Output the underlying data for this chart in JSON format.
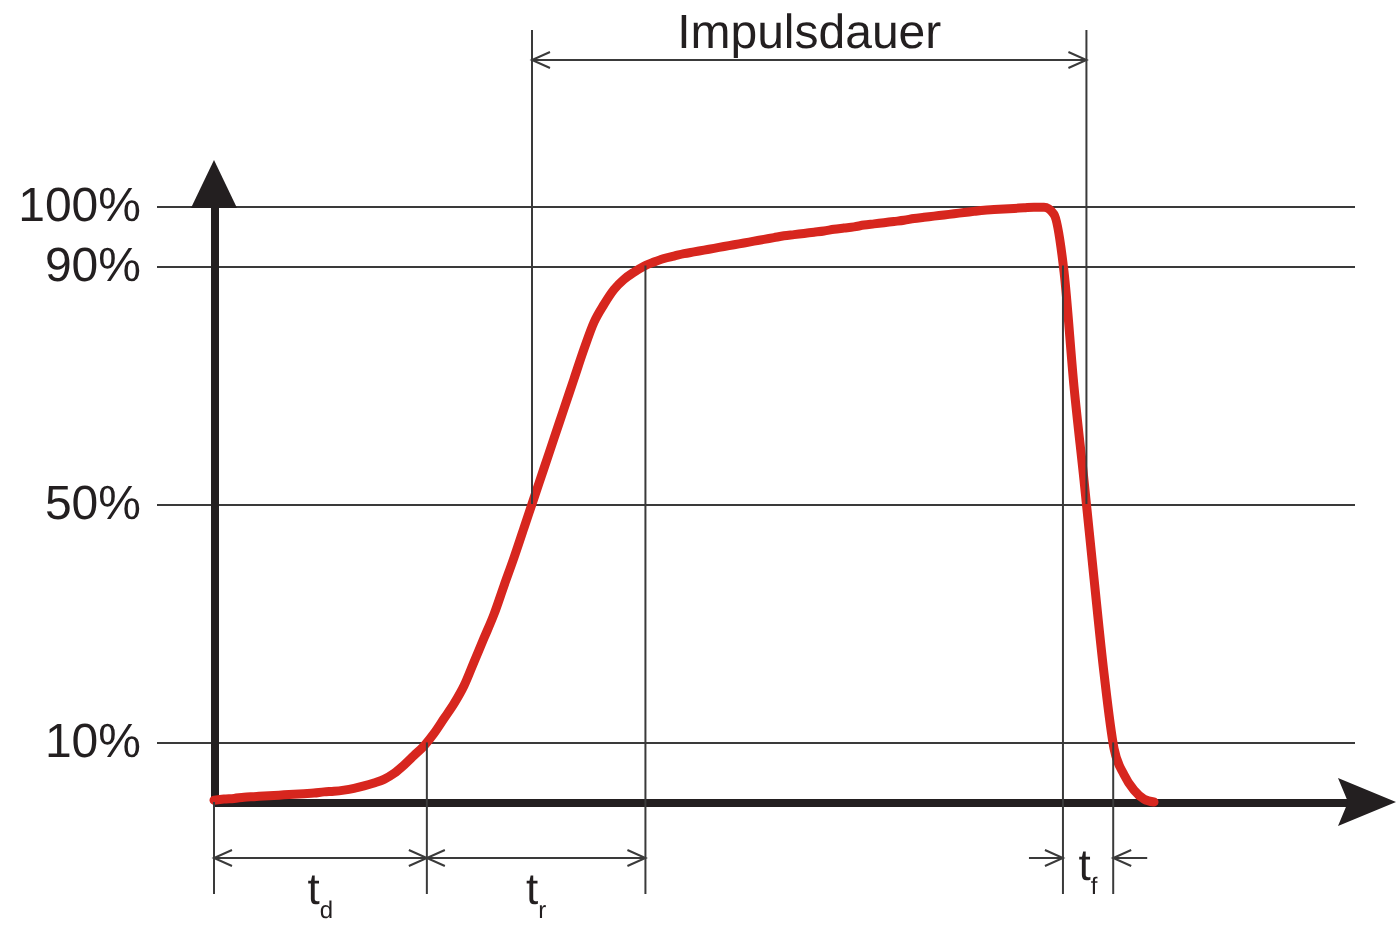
{
  "chart_data": {
    "type": "line",
    "annotations": [
      "Impulsdauer",
      "t$_{d}$",
      "t$_{r}$",
      "t$_{f}$"
    ],
    "categories": [
      null,
      null,
      null,
      null,
      null,
      null,
      null,
      null,
      null,
      null,
      null,
      null,
      null,
      null,
      null,
      null,
      null,
      null,
      null,
      null,
      null,
      null,
      null,
      null,
      null,
      null,
      null,
      null,
      null,
      null,
      null,
      null,
      null,
      null,
      null,
      null,
      null,
      null,
      null,
      null,
      null,
      null,
      null,
      null,
      null,
      null,
      null,
      null,
      null,
      null,
      null,
      null,
      null,
      null,
      null,
      null,
      null,
      null,
      null,
      null,
      null,
      null,
      null,
      null,
      null,
      null,
      null,
      null,
      null,
      null,
      null,
      null,
      null,
      null,
      null,
      null,
      null,
      null,
      null,
      null,
      null,
      null,
      null,
      null,
      null,
      null,
      null,
      null,
      null,
      null,
      null,
      null,
      null,
      null,
      null,
      null,
      null,
      null,
      null,
      null,
      null,
      null,
      null,
      null,
      null,
      null,
      null,
      null,
      null,
      null,
      null,
      null,
      null,
      null,
      null
    ],
    "values": [
      0.3,
      0.5,
      0.6,
      0.8,
      0.9,
      1.0,
      1.1,
      1.2,
      1.3,
      1.4,
      1.5,
      1.7,
      1.8,
      2.0,
      2.3,
      2.7,
      3.2,
      3.8,
      4.8,
      6.2,
      7.8,
      9.4,
      11.5,
      14,
      16.5,
      19.5,
      23.5,
      27.5,
      31.5,
      36.3,
      41,
      46,
      51,
      56,
      61,
      66,
      71,
      76,
      80.5,
      83.5,
      86,
      87.7,
      88.9,
      89.9,
      90.6,
      91.2,
      91.6,
      92.0,
      92.3,
      92.6,
      92.9,
      93.2,
      93.5,
      93.8,
      94.1,
      94.4,
      94.7,
      95.0,
      95.2,
      95.4,
      95.6,
      95.8,
      96.1,
      96.3,
      96.5,
      96.8,
      97.0,
      97.2,
      97.4,
      97.6,
      97.9,
      98.1,
      98.3,
      98.5,
      98.7,
      98.9,
      99.1,
      99.3,
      99.4,
      99.5,
      99.6,
      99.7,
      99.8,
      99.8,
      98.6,
      89,
      69.7,
      54,
      37.5,
      21.6,
      9.0,
      4.6,
      2.0,
      0.5,
      0,
      null,
      null,
      null,
      null,
      null,
      null,
      null,
      null,
      null,
      null,
      null,
      null,
      null,
      null,
      null,
      null,
      null,
      null,
      null,
      null
    ],
    "color": "#d7261e",
    "ylim": [
      0,
      100
    ],
    "yticks": [
      {
        "value": 10,
        "label": "10%"
      },
      {
        "value": 50,
        "label": "50%"
      },
      {
        "value": 90,
        "label": "90%"
      },
      {
        "value": 100,
        "label": "100%"
      }
    ],
    "grid": "y",
    "tick_labels": "y"
  }
}
